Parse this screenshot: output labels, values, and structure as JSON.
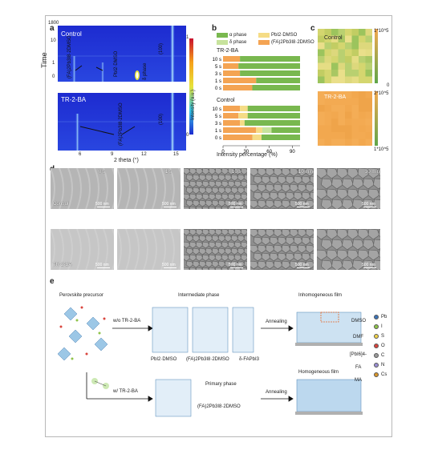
{
  "panel_labels": {
    "a": "a",
    "b": "b",
    "c": "c",
    "d": "d",
    "e": "e"
  },
  "panel_a": {
    "ylabel": "Time",
    "xlabel": "2 theta (°)",
    "xticks": [
      "6",
      "9",
      "12",
      "15"
    ],
    "yticks": [
      "1800",
      "10",
      "1",
      "0"
    ],
    "top_title": "Control",
    "bottom_title": "TR-2-BA",
    "annotations_top": [
      "(FA)2Pb3I8·2DMSO",
      "PbI2·DMSO",
      "δ phase",
      "(100)"
    ],
    "annotations_bottom": [
      "(FA)2Pb3I8·2DMSO",
      "(100)"
    ],
    "colorbar_label": "Intensity (a.u.)",
    "colorbar_ticks": [
      "1",
      "0"
    ]
  },
  "panel_c": {
    "top_title": "Control",
    "bottom_title": "TR-2-BA",
    "top_scale": [
      "1*10^5",
      "0"
    ],
    "bottom_scale": [
      "2*10^5",
      "1*10^5"
    ]
  },
  "panel_d": {
    "times": [
      "0 s",
      "1 s",
      "10 s",
      "10 min",
      "30 min"
    ],
    "row_labels": [
      "Control",
      "TR-2-BA"
    ],
    "scale": "500 nm"
  },
  "panel_e": {
    "precursor_title": "Perovskite precursor",
    "intermediate_title": "Intermediate phase",
    "inhomogeneous_title": "Inhomogeneous film",
    "homogeneous_title": "Homogeneous film",
    "wo_label": "w/o TR-2-BA",
    "w_label": "w/ TR-2-BA",
    "annealing_label": "Annealing",
    "phase_labels": [
      "PbI2·DMSO",
      "(FA)2Pb3I8·2DMSO",
      "δ-FAPbI3"
    ],
    "primary_phase_title": "Primary phase",
    "primary_phase_label": "(FA)2Pb3I8·2DMSO",
    "molecule_legend": [
      "DMSO",
      "DMF",
      "[PbI6]4-",
      "FA",
      "MA"
    ],
    "element_legend": [
      {
        "name": "Pb",
        "color": "#3d74b8"
      },
      {
        "name": "I",
        "color": "#8fc34a"
      },
      {
        "name": "S",
        "color": "#f1d34a"
      },
      {
        "name": "O",
        "color": "#d9453d"
      },
      {
        "name": "C",
        "color": "#9b9b9b"
      },
      {
        "name": "N",
        "color": "#9a8ed3"
      },
      {
        "name": "Cs",
        "color": "#d8962c"
      }
    ]
  },
  "chart_data": {
    "type": "bar",
    "stacked": true,
    "orientation": "horizontal",
    "xlabel": "Intensity percentage (%)",
    "xlim": [
      0,
      100
    ],
    "xticks": [
      "0",
      "30",
      "60",
      "90"
    ],
    "legend": [
      "α phase",
      "PbI2·DMSO",
      "δ phase",
      "(FA)2Pb3I8·2DMSO"
    ],
    "legend_colors": [
      "#79b84f",
      "#f5dc86",
      "#c7e39d",
      "#f4a453"
    ],
    "groups": [
      {
        "name": "TR-2-BA",
        "categories": [
          "10 s",
          "5 s",
          "3 s",
          "1 s",
          "0 s"
        ],
        "series": [
          {
            "name": "(FA)2Pb3I8·2DMSO",
            "values": [
              22,
              20,
              22,
              43,
              38
            ]
          },
          {
            "name": "α phase",
            "values": [
              78,
              80,
              78,
              57,
              62
            ]
          }
        ]
      },
      {
        "name": "Control",
        "categories": [
          "10 s",
          "5 s",
          "3 s",
          "1 s",
          "0 s"
        ],
        "series": [
          {
            "name": "(FA)2Pb3I8·2DMSO",
            "values": [
              22,
              20,
              22,
              43,
              38
            ]
          },
          {
            "name": "PbI2·DMSO",
            "values": [
              10,
              12,
              6,
              8,
              12
            ]
          },
          {
            "name": "δ phase",
            "values": [
              0,
              0,
              0,
              12,
              0
            ]
          },
          {
            "name": "α phase",
            "values": [
              68,
              68,
              72,
              37,
              50
            ]
          }
        ]
      }
    ]
  }
}
